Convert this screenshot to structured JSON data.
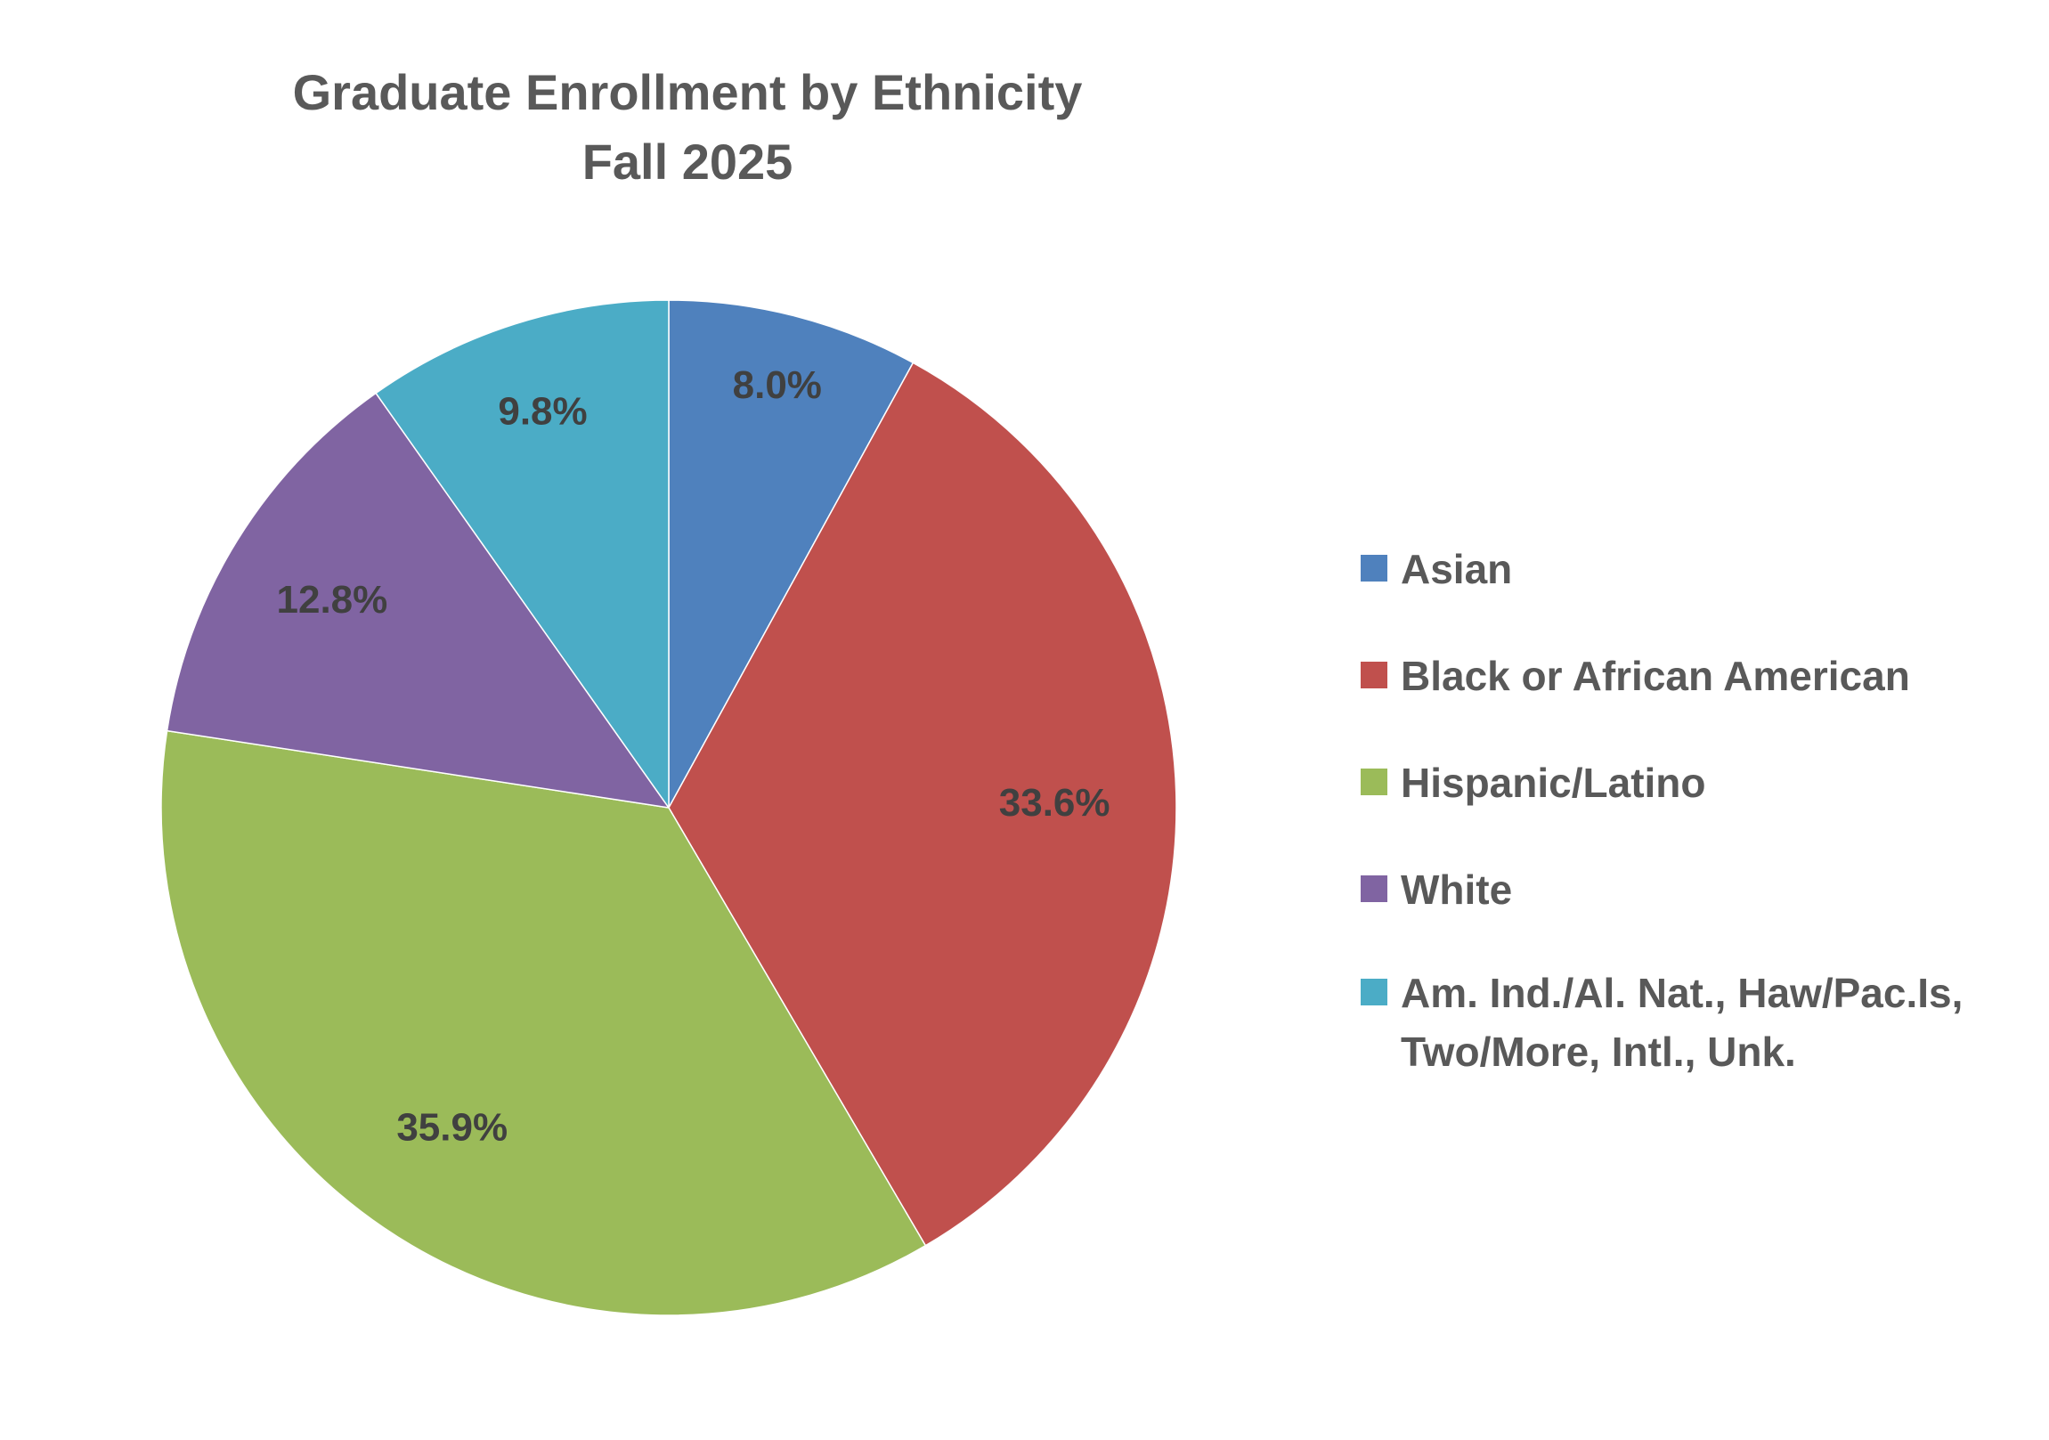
{
  "chart_data": {
    "type": "pie",
    "title": "Graduate Enrollment by Ethnicity",
    "subtitle": "Fall 2025",
    "categories": [
      "Asian",
      "Black or African American",
      "Hispanic/Latino",
      "White",
      "Am. Ind./Al. Nat., Haw/Pac.Is, Two/More, Intl., Unk."
    ],
    "values": [
      8.0,
      33.6,
      35.9,
      12.8,
      9.8
    ],
    "value_labels": [
      "8.0%",
      "33.6%",
      "35.9%",
      "12.8%",
      "9.8%"
    ],
    "unit": "%",
    "colors": [
      "#4F81BD",
      "#C0504D",
      "#9BBB59",
      "#8064A2",
      "#4BACC6"
    ],
    "start_angle_deg": 0,
    "direction": "clockwise",
    "legend_position": "right",
    "legend": [
      {
        "label_lines": [
          "Asian"
        ],
        "color": "#4F81BD"
      },
      {
        "label_lines": [
          "Black or African American"
        ],
        "color": "#C0504D"
      },
      {
        "label_lines": [
          "Hispanic/Latino"
        ],
        "color": "#9BBB59"
      },
      {
        "label_lines": [
          "White"
        ],
        "color": "#8064A2"
      },
      {
        "label_lines": [
          "Am. Ind./Al. Nat., Haw/Pac.Is,",
          "Two/More, Intl., Unk."
        ],
        "color": "#4BACC6"
      }
    ]
  }
}
